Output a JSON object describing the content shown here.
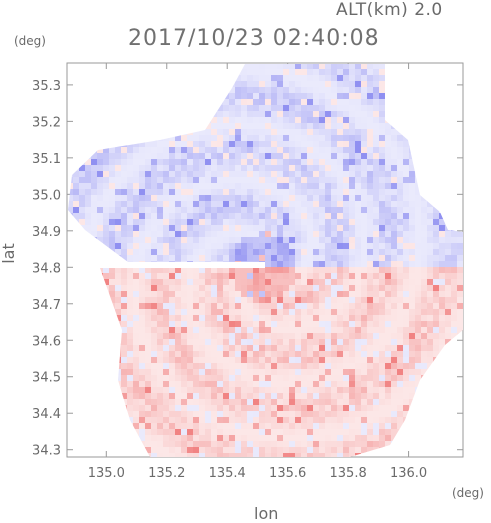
{
  "header": {
    "altitude": "ALT(km) 2.0",
    "datetime": "2017/10/23 02:40:08"
  },
  "axes": {
    "x_unit": "(deg)",
    "y_unit": "(deg)",
    "x_label": "lon",
    "y_label": "lat",
    "x_ticks": [
      "135.0",
      "135.2",
      "135.4",
      "135.6",
      "135.8",
      "136.0"
    ],
    "y_ticks": [
      "35.3",
      "35.2",
      "35.1",
      "35.0",
      "34.9",
      "34.8",
      "34.7",
      "34.6",
      "34.5",
      "34.4",
      "34.3"
    ]
  },
  "chart_data": {
    "type": "heatmap",
    "x_range": [
      134.87,
      136.18
    ],
    "y_range": [
      34.28,
      35.36
    ],
    "x_tick_values": [
      135.0,
      135.2,
      135.4,
      135.6,
      135.8,
      136.0
    ],
    "y_tick_values": [
      35.3,
      35.2,
      35.1,
      35.0,
      34.9,
      34.8,
      34.7,
      34.6,
      34.5,
      34.4,
      34.3
    ],
    "center": [
      135.52,
      34.8
    ],
    "colors": {
      "approaching": "#8a8af0",
      "receding": "#f07c7c",
      "frame": "#9a9a9a"
    }
  }
}
